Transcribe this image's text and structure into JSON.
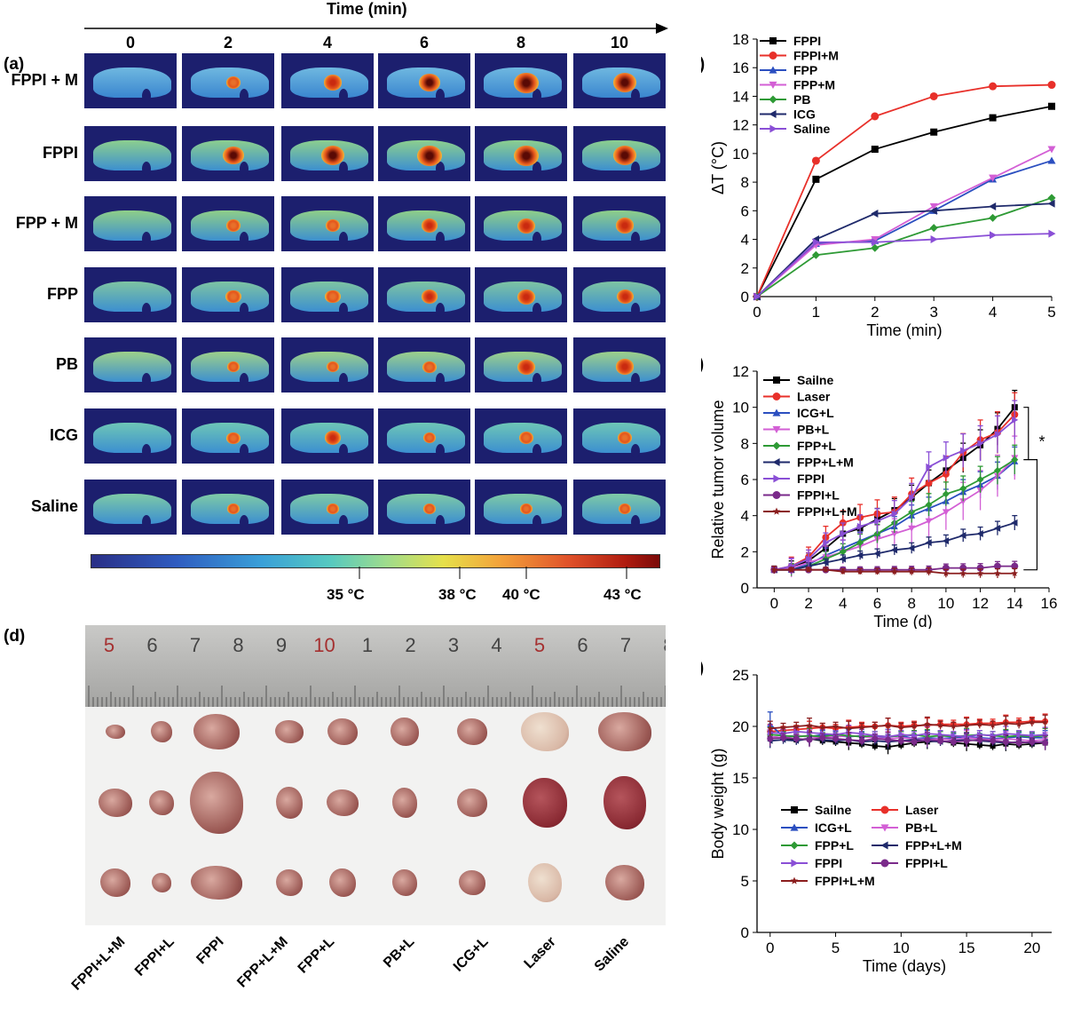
{
  "panel_a": {
    "label": "(a)",
    "axis_title": "Time (min)",
    "times": [
      "0",
      "2",
      "4",
      "6",
      "8",
      "10"
    ],
    "rows": [
      "FPPI + M",
      "FPPI",
      "FPP + M",
      "FPP",
      "PB",
      "ICG",
      "Saline"
    ],
    "colorbar_labels": [
      "35 °C",
      "38 °C",
      "40 °C",
      "43 °C"
    ]
  },
  "panel_d": {
    "label": "(d)",
    "ruler_numbers": [
      "5",
      "6",
      "7",
      "8",
      "9",
      "10",
      "1",
      "2",
      "3",
      "4",
      "5",
      "6",
      "7",
      "8"
    ],
    "groups": [
      "FPPI+L+M",
      "FPPI+L",
      "FPPI",
      "FPP+L+M",
      "FPP+L",
      "PB+L",
      "ICG+L",
      "Laser",
      "Saline"
    ]
  },
  "chart_data": [
    {
      "id": "b",
      "label": "(b)",
      "type": "line",
      "xlabel": "Time (min)",
      "ylabel": "ΔT (°C)",
      "xlim": [
        0,
        5
      ],
      "ylim": [
        0,
        18
      ],
      "xticks": [
        "0",
        "1",
        "2",
        "3",
        "4",
        "5"
      ],
      "yticks": [
        "0",
        "2",
        "4",
        "6",
        "8",
        "10",
        "12",
        "14",
        "16",
        "18"
      ],
      "x": [
        0,
        1,
        2,
        3,
        4,
        5
      ],
      "series": [
        {
          "name": "FPPI",
          "color": "#000000",
          "marker": "square",
          "values": [
            0,
            8.2,
            10.3,
            11.5,
            12.5,
            13.3
          ]
        },
        {
          "name": "FPPI+M",
          "color": "#e8302a",
          "marker": "circle",
          "values": [
            0,
            9.5,
            12.6,
            14.0,
            14.7,
            14.8
          ]
        },
        {
          "name": "FPP",
          "color": "#2b4fc0",
          "marker": "triangle-up",
          "values": [
            0,
            3.7,
            3.9,
            6.0,
            8.2,
            9.5
          ]
        },
        {
          "name": "FPP+M",
          "color": "#d35fd5",
          "marker": "triangle-down",
          "values": [
            0,
            3.6,
            4.0,
            6.3,
            8.3,
            10.3
          ]
        },
        {
          "name": "PB",
          "color": "#2e9a35",
          "marker": "diamond",
          "values": [
            0,
            2.9,
            3.4,
            4.8,
            5.5,
            6.9
          ]
        },
        {
          "name": "ICG",
          "color": "#1f2a6b",
          "marker": "triangle-left",
          "values": [
            0,
            4.0,
            5.8,
            6.0,
            6.3,
            6.5
          ]
        },
        {
          "name": "Saline",
          "color": "#8a4fd6",
          "marker": "triangle-right",
          "values": [
            0,
            3.8,
            3.8,
            4.0,
            4.3,
            4.4
          ]
        }
      ]
    },
    {
      "id": "c",
      "label": "(c)",
      "type": "line",
      "xlabel": "Time (d)",
      "ylabel": "Relative tumor volume",
      "xlim": [
        -1,
        16
      ],
      "ylim": [
        0,
        12
      ],
      "xticks": [
        "0",
        "2",
        "4",
        "6",
        "8",
        "10",
        "12",
        "14",
        "16"
      ],
      "yticks": [
        "0",
        "2",
        "4",
        "6",
        "8",
        "10",
        "12"
      ],
      "annotation": "*",
      "x": [
        0,
        1,
        2,
        3,
        4,
        5,
        6,
        7,
        8,
        9,
        10,
        11,
        12,
        13,
        14
      ],
      "series": [
        {
          "name": "Sailne",
          "color": "#000000",
          "marker": "square",
          "values": [
            1,
            1.1,
            1.5,
            2.2,
            3.0,
            3.3,
            3.8,
            4.3,
            5.0,
            5.8,
            6.5,
            7.2,
            7.9,
            8.8,
            10.0
          ]
        },
        {
          "name": "Laser",
          "color": "#e8302a",
          "marker": "circle",
          "values": [
            1,
            1.2,
            1.7,
            2.8,
            3.6,
            3.9,
            4.1,
            4.2,
            5.2,
            5.8,
            6.3,
            7.5,
            8.2,
            8.6,
            9.6
          ]
        },
        {
          "name": "ICG+L",
          "color": "#2b4fc0",
          "marker": "triangle-up",
          "values": [
            1,
            1.0,
            1.3,
            1.8,
            2.2,
            2.6,
            3.0,
            3.4,
            4.0,
            4.4,
            4.8,
            5.3,
            5.7,
            6.2,
            7.0
          ]
        },
        {
          "name": "PB+L",
          "color": "#d35fd5",
          "marker": "triangle-down",
          "values": [
            1,
            1.1,
            1.4,
            1.7,
            2.0,
            2.3,
            2.7,
            3.0,
            3.3,
            3.7,
            4.2,
            4.8,
            5.4,
            6.2,
            7.2
          ]
        },
        {
          "name": "FPP+L",
          "color": "#2e9a35",
          "marker": "diamond",
          "values": [
            1,
            1.0,
            1.2,
            1.6,
            2.0,
            2.5,
            3.0,
            3.6,
            4.2,
            4.6,
            5.2,
            5.5,
            6.0,
            6.5,
            7.1
          ]
        },
        {
          "name": "FPP+L+M",
          "color": "#1f2a6b",
          "marker": "triangle-left",
          "values": [
            1,
            1.0,
            1.2,
            1.4,
            1.6,
            1.8,
            1.9,
            2.1,
            2.2,
            2.5,
            2.6,
            2.9,
            3.0,
            3.3,
            3.6
          ]
        },
        {
          "name": "FPPI",
          "color": "#8a4fd6",
          "marker": "triangle-right",
          "values": [
            1,
            1.2,
            1.6,
            2.5,
            3.0,
            3.4,
            3.7,
            4.1,
            5.0,
            6.7,
            7.2,
            7.6,
            8.0,
            8.5,
            9.3
          ]
        },
        {
          "name": "FPPI+L",
          "color": "#7a2a8a",
          "marker": "circle",
          "values": [
            1,
            1.0,
            1.0,
            1.0,
            1.0,
            1.0,
            1.0,
            1.0,
            1.0,
            1.0,
            1.1,
            1.1,
            1.1,
            1.2,
            1.2
          ]
        },
        {
          "name": "FPPI+L+M",
          "color": "#8b1e1e",
          "marker": "star",
          "values": [
            1,
            1.0,
            1.0,
            1.0,
            0.9,
            0.9,
            0.9,
            0.9,
            0.9,
            0.9,
            0.8,
            0.8,
            0.8,
            0.8,
            0.8
          ]
        }
      ]
    },
    {
      "id": "e",
      "label": "(e)",
      "type": "line",
      "xlabel": "Time (days)",
      "ylabel": "Body weight (g)",
      "xlim": [
        -1,
        21.5
      ],
      "ylim": [
        0,
        25
      ],
      "xticks": [
        "0",
        "5",
        "10",
        "15",
        "20"
      ],
      "yticks": [
        "0",
        "5",
        "10",
        "15",
        "20",
        "25"
      ],
      "x": [
        0,
        1,
        2,
        3,
        4,
        5,
        6,
        7,
        8,
        9,
        10,
        11,
        12,
        13,
        14,
        15,
        16,
        17,
        18,
        19,
        20,
        21
      ],
      "series": [
        {
          "name": "Sailne",
          "color": "#000000",
          "marker": "square",
          "values": [
            19.0,
            18.9,
            18.7,
            18.8,
            18.6,
            18.5,
            18.4,
            18.3,
            18.1,
            18.0,
            18.2,
            18.4,
            18.5,
            18.6,
            18.4,
            18.3,
            18.2,
            18.1,
            18.3,
            18.2,
            18.3,
            18.4
          ]
        },
        {
          "name": "Laser",
          "color": "#e8302a",
          "marker": "circle",
          "values": [
            19.5,
            19.6,
            19.7,
            19.8,
            19.9,
            19.8,
            19.9,
            20.0,
            20.0,
            20.1,
            20.0,
            20.1,
            20.1,
            20.2,
            20.2,
            20.2,
            20.3,
            20.3,
            20.4,
            20.4,
            20.5,
            20.5
          ]
        },
        {
          "name": "ICG+L",
          "color": "#2b4fc0",
          "marker": "triangle-up",
          "values": [
            20.2,
            19.0,
            19.1,
            19.0,
            19.2,
            19.1,
            19.0,
            19.1,
            18.9,
            19.0,
            19.1,
            18.8,
            18.9,
            18.8,
            18.9,
            19.0,
            18.9,
            18.8,
            18.9,
            19.0,
            18.9,
            18.9
          ]
        },
        {
          "name": "PB+L",
          "color": "#d35fd5",
          "marker": "triangle-down",
          "values": [
            19.0,
            18.9,
            19.1,
            19.0,
            18.9,
            19.0,
            19.1,
            19.0,
            18.9,
            18.8,
            18.9,
            18.8,
            18.7,
            18.8,
            18.7,
            18.9,
            18.8,
            18.7,
            18.8,
            18.7,
            18.6,
            18.7
          ]
        },
        {
          "name": "FPP+L",
          "color": "#2e9a35",
          "marker": "diamond",
          "values": [
            19.2,
            19.1,
            19.0,
            19.1,
            19.0,
            19.2,
            19.1,
            19.0,
            19.1,
            19.0,
            19.1,
            19.2,
            19.0,
            19.1,
            19.0,
            19.1,
            19.2,
            19.1,
            19.0,
            19.1,
            19.0,
            19.1
          ]
        },
        {
          "name": "FPP+L+M",
          "color": "#1f2a6b",
          "marker": "triangle-left",
          "values": [
            18.6,
            18.7,
            18.6,
            18.8,
            18.7,
            18.6,
            18.7,
            18.5,
            18.6,
            18.5,
            18.6,
            18.7,
            18.6,
            18.5,
            18.6,
            18.7,
            18.6,
            18.5,
            18.4,
            18.5,
            18.4,
            18.5
          ]
        },
        {
          "name": "FPPI",
          "color": "#8a4fd6",
          "marker": "triangle-right",
          "values": [
            19.4,
            19.3,
            19.5,
            19.4,
            19.3,
            19.2,
            19.4,
            19.3,
            19.1,
            19.0,
            19.2,
            19.1,
            19.3,
            19.2,
            19.1,
            19.0,
            19.2,
            19.1,
            19.3,
            19.2,
            19.1,
            19.2
          ]
        },
        {
          "name": "FPPI+L",
          "color": "#7a2a8a",
          "marker": "circle",
          "values": [
            18.8,
            18.9,
            18.8,
            18.7,
            18.9,
            18.8,
            18.7,
            18.6,
            18.8,
            18.7,
            18.6,
            18.5,
            18.7,
            18.6,
            18.5,
            18.6,
            18.7,
            18.6,
            18.5,
            18.4,
            18.5,
            18.4
          ]
        },
        {
          "name": "FPPI+L+M",
          "color": "#8b1e1e",
          "marker": "star",
          "values": [
            19.8,
            19.9,
            20.0,
            20.1,
            19.9,
            20.0,
            19.8,
            19.9,
            20.0,
            20.1,
            19.9,
            20.0,
            20.2,
            20.1,
            20.0,
            20.1,
            20.2,
            20.1,
            20.3,
            20.2,
            20.4,
            20.4
          ]
        }
      ]
    }
  ]
}
